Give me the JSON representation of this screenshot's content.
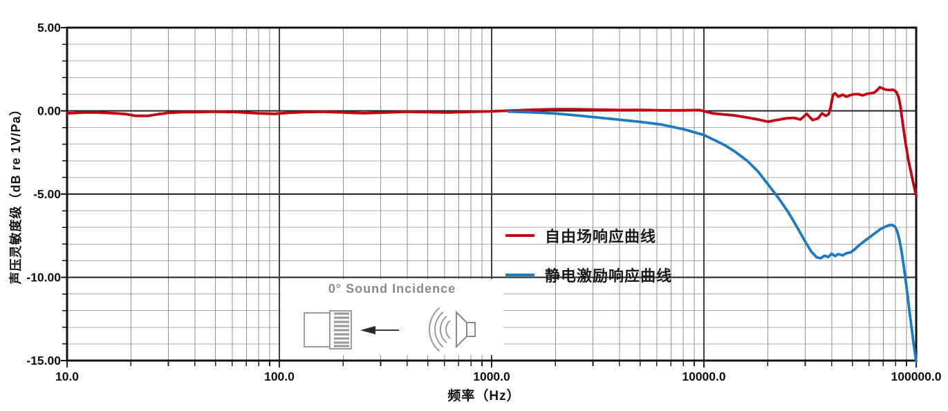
{
  "chart_data": {
    "type": "line",
    "title": "",
    "xlabel": "频率（Hz）",
    "ylabel": "声压灵敏度级（dB re 1V/Pa）",
    "x_scale": "log",
    "xlim": [
      10,
      100000
    ],
    "ylim": [
      -15,
      5
    ],
    "x_ticks": {
      "values": [
        10,
        100,
        1000,
        10000,
        100000
      ],
      "labels": [
        "10.0",
        "100.0",
        "1000.0",
        "10000.0",
        "100000.0"
      ]
    },
    "y_ticks": {
      "values": [
        5,
        0,
        -5,
        -10,
        -15
      ],
      "labels": [
        "5.00",
        "0.00",
        "-5.00",
        "-10.00",
        "-15.00"
      ]
    },
    "y_minor_step": 1,
    "grid": "major+minor",
    "legend_position": "inside-center-right",
    "colors": {
      "grid_minor_h": "#ababab",
      "grid_minor_v": "#8f8f8f",
      "grid_major": "#1f1f1f",
      "frame": "#101010",
      "tick_text": "#0d0d0d"
    },
    "series": [
      {
        "name": "自由场响应曲线",
        "color": "#c4020f",
        "points": [
          [
            10,
            -0.15
          ],
          [
            12,
            -0.1
          ],
          [
            14,
            -0.1
          ],
          [
            17,
            -0.15
          ],
          [
            19,
            -0.2
          ],
          [
            21,
            -0.3
          ],
          [
            24,
            -0.3
          ],
          [
            27,
            -0.2
          ],
          [
            30,
            -0.12
          ],
          [
            35,
            -0.08
          ],
          [
            40,
            -0.08
          ],
          [
            50,
            -0.05
          ],
          [
            63,
            -0.08
          ],
          [
            80,
            -0.15
          ],
          [
            95,
            -0.18
          ],
          [
            110,
            -0.12
          ],
          [
            130,
            -0.08
          ],
          [
            160,
            -0.06
          ],
          [
            200,
            -0.1
          ],
          [
            250,
            -0.14
          ],
          [
            320,
            -0.1
          ],
          [
            400,
            -0.06
          ],
          [
            500,
            -0.08
          ],
          [
            630,
            -0.1
          ],
          [
            800,
            -0.06
          ],
          [
            1000,
            -0.03
          ],
          [
            1250,
            0.02
          ],
          [
            1600,
            0.07
          ],
          [
            2000,
            0.1
          ],
          [
            2500,
            0.1
          ],
          [
            3150,
            0.07
          ],
          [
            4000,
            0.05
          ],
          [
            5000,
            0.06
          ],
          [
            6300,
            0.03
          ],
          [
            8000,
            0.03
          ],
          [
            9500,
            0.05
          ],
          [
            11000,
            -0.15
          ],
          [
            12500,
            -0.22
          ],
          [
            14000,
            -0.28
          ],
          [
            16000,
            -0.4
          ],
          [
            18000,
            -0.52
          ],
          [
            20000,
            -0.65
          ],
          [
            22000,
            -0.55
          ],
          [
            24500,
            -0.45
          ],
          [
            26500,
            -0.42
          ],
          [
            28500,
            -0.52
          ],
          [
            30500,
            -0.18
          ],
          [
            32500,
            -0.55
          ],
          [
            34500,
            -0.45
          ],
          [
            36000,
            -0.15
          ],
          [
            37500,
            -0.3
          ],
          [
            38700,
            -0.2
          ],
          [
            39500,
            0.2
          ],
          [
            40500,
            0.95
          ],
          [
            41500,
            1.05
          ],
          [
            43000,
            0.85
          ],
          [
            45000,
            0.97
          ],
          [
            47000,
            0.85
          ],
          [
            49000,
            0.95
          ],
          [
            51000,
            1.0
          ],
          [
            53500,
            1.0
          ],
          [
            56000,
            0.93
          ],
          [
            58500,
            1.02
          ],
          [
            61000,
            1.05
          ],
          [
            63500,
            1.1
          ],
          [
            65500,
            1.25
          ],
          [
            67500,
            1.42
          ],
          [
            69500,
            1.35
          ],
          [
            72000,
            1.27
          ],
          [
            75000,
            1.25
          ],
          [
            78000,
            1.27
          ],
          [
            80500,
            1.15
          ],
          [
            82500,
            0.85
          ],
          [
            84500,
            0.2
          ],
          [
            86500,
            -0.8
          ],
          [
            89000,
            -1.9
          ],
          [
            92000,
            -3.0
          ],
          [
            96000,
            -4.1
          ],
          [
            100000,
            -5.1
          ]
        ]
      },
      {
        "name": "静电激励响应曲线",
        "color": "#1b7ac1",
        "points": [
          [
            1200,
            -0.04
          ],
          [
            1400,
            -0.07
          ],
          [
            1700,
            -0.11
          ],
          [
            2000,
            -0.16
          ],
          [
            2500,
            -0.27
          ],
          [
            3150,
            -0.4
          ],
          [
            4000,
            -0.53
          ],
          [
            5000,
            -0.66
          ],
          [
            6300,
            -0.82
          ],
          [
            8000,
            -1.1
          ],
          [
            10000,
            -1.45
          ],
          [
            12500,
            -2.05
          ],
          [
            14000,
            -2.45
          ],
          [
            16000,
            -3.0
          ],
          [
            18000,
            -3.65
          ],
          [
            20000,
            -4.4
          ],
          [
            22500,
            -5.25
          ],
          [
            25000,
            -6.1
          ],
          [
            27500,
            -7.0
          ],
          [
            30000,
            -7.85
          ],
          [
            32000,
            -8.45
          ],
          [
            34000,
            -8.8
          ],
          [
            35500,
            -8.85
          ],
          [
            37000,
            -8.7
          ],
          [
            38500,
            -8.78
          ],
          [
            40000,
            -8.58
          ],
          [
            41500,
            -8.72
          ],
          [
            43000,
            -8.6
          ],
          [
            45000,
            -8.68
          ],
          [
            47000,
            -8.55
          ],
          [
            49000,
            -8.5
          ],
          [
            51000,
            -8.35
          ],
          [
            53500,
            -8.1
          ],
          [
            56000,
            -7.9
          ],
          [
            59000,
            -7.68
          ],
          [
            62000,
            -7.48
          ],
          [
            65000,
            -7.28
          ],
          [
            68000,
            -7.1
          ],
          [
            71000,
            -6.98
          ],
          [
            74000,
            -6.88
          ],
          [
            77000,
            -6.85
          ],
          [
            79500,
            -6.95
          ],
          [
            81500,
            -7.25
          ],
          [
            83500,
            -7.8
          ],
          [
            85500,
            -8.5
          ],
          [
            87500,
            -9.4
          ],
          [
            89500,
            -10.3
          ],
          [
            91500,
            -11.3
          ],
          [
            93500,
            -12.3
          ],
          [
            95500,
            -13.2
          ],
          [
            97500,
            -14.1
          ],
          [
            100000,
            -15.05
          ]
        ]
      }
    ]
  },
  "inset": {
    "label": "0° Sound Incidence"
  }
}
